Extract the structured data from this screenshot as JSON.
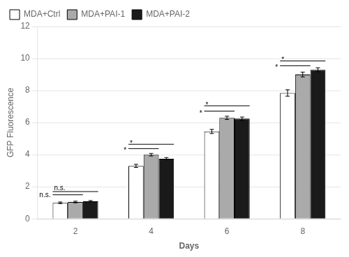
{
  "chart_data": {
    "type": "bar",
    "xlabel": "Days",
    "ylabel": "GFP Fluorescence",
    "categories": [
      2,
      4,
      6,
      8
    ],
    "series": [
      {
        "name": "MDA+Ctrl",
        "color": "#ffffff",
        "values": [
          1.0,
          3.3,
          5.45,
          7.85
        ],
        "errors": [
          0.05,
          0.1,
          0.13,
          0.2
        ]
      },
      {
        "name": "MDA+PAI-1",
        "color": "#aaaaaa",
        "values": [
          1.05,
          4.0,
          6.3,
          9.0
        ],
        "errors": [
          0.05,
          0.08,
          0.1,
          0.15
        ]
      },
      {
        "name": "MDA+PAI-2",
        "color": "#1a1a1a",
        "values": [
          1.1,
          3.75,
          6.25,
          9.3
        ],
        "errors": [
          0.04,
          0.07,
          0.1,
          0.12
        ]
      }
    ],
    "ylim": [
      0,
      12
    ],
    "yticks": [
      0,
      2,
      4,
      6,
      8,
      10,
      12
    ],
    "grid": true,
    "legend": "upper left",
    "annotations": [
      {
        "text": "n.s.",
        "category": 2,
        "from": "MDA+Ctrl",
        "to": "MDA+PAI-2",
        "y": 1.7
      },
      {
        "text": "n.s.",
        "category": 2,
        "from": "MDA+Ctrl",
        "to": "MDA+PAI-1",
        "y": 1.5
      },
      {
        "text": "*",
        "category": 4,
        "from": "MDA+Ctrl",
        "to": "MDA+PAI-2",
        "y": 4.65
      },
      {
        "text": "*",
        "category": 4,
        "from": "MDA+Ctrl",
        "to": "MDA+PAI-1",
        "y": 4.38
      },
      {
        "text": "*",
        "category": 6,
        "from": "MDA+Ctrl",
        "to": "MDA+PAI-2",
        "y": 7.05
      },
      {
        "text": "*",
        "category": 6,
        "from": "MDA+Ctrl",
        "to": "MDA+PAI-1",
        "y": 6.72
      },
      {
        "text": "*",
        "category": 8,
        "from": "MDA+Ctrl",
        "to": "MDA+PAI-2",
        "y": 9.85
      },
      {
        "text": "*",
        "category": 8,
        "from": "MDA+Ctrl",
        "to": "MDA+PAI-1",
        "y": 9.55
      }
    ]
  }
}
